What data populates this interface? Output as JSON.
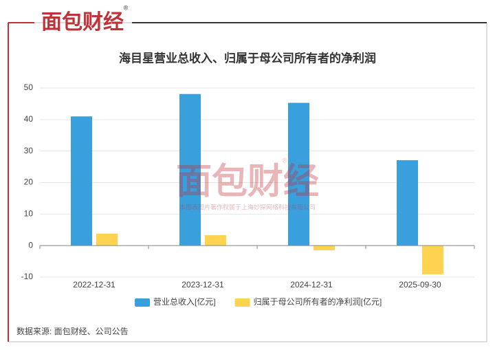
{
  "logo": {
    "text": "面包财经",
    "mark": "®"
  },
  "watermark": {
    "text": "面包财经",
    "mark": "®",
    "copyright": "本图表图片著作权属于上海妙探网络科技有限公司"
  },
  "source": "数据来源: 面包财经、公司公告",
  "chart_data": {
    "type": "bar",
    "title": "海目星营业总收入、归属于母公司所有者的净利润",
    "categories": [
      "2022-12-31",
      "2023-12-31",
      "2024-12-31",
      "2025-09-30"
    ],
    "series": [
      {
        "name": "营业总收入[亿元]",
        "color": "#3a9fdd",
        "values": [
          41.0,
          48.1,
          45.3,
          27.1
        ]
      },
      {
        "name": "归属于母公司所有者的净利润[亿元]",
        "color": "#fdd34f",
        "values": [
          3.8,
          3.3,
          -1.5,
          -9.1
        ]
      }
    ],
    "ylim": [
      -10,
      50
    ],
    "yticks": [
      -10,
      0,
      10,
      20,
      30,
      40,
      50
    ],
    "grid": true
  }
}
